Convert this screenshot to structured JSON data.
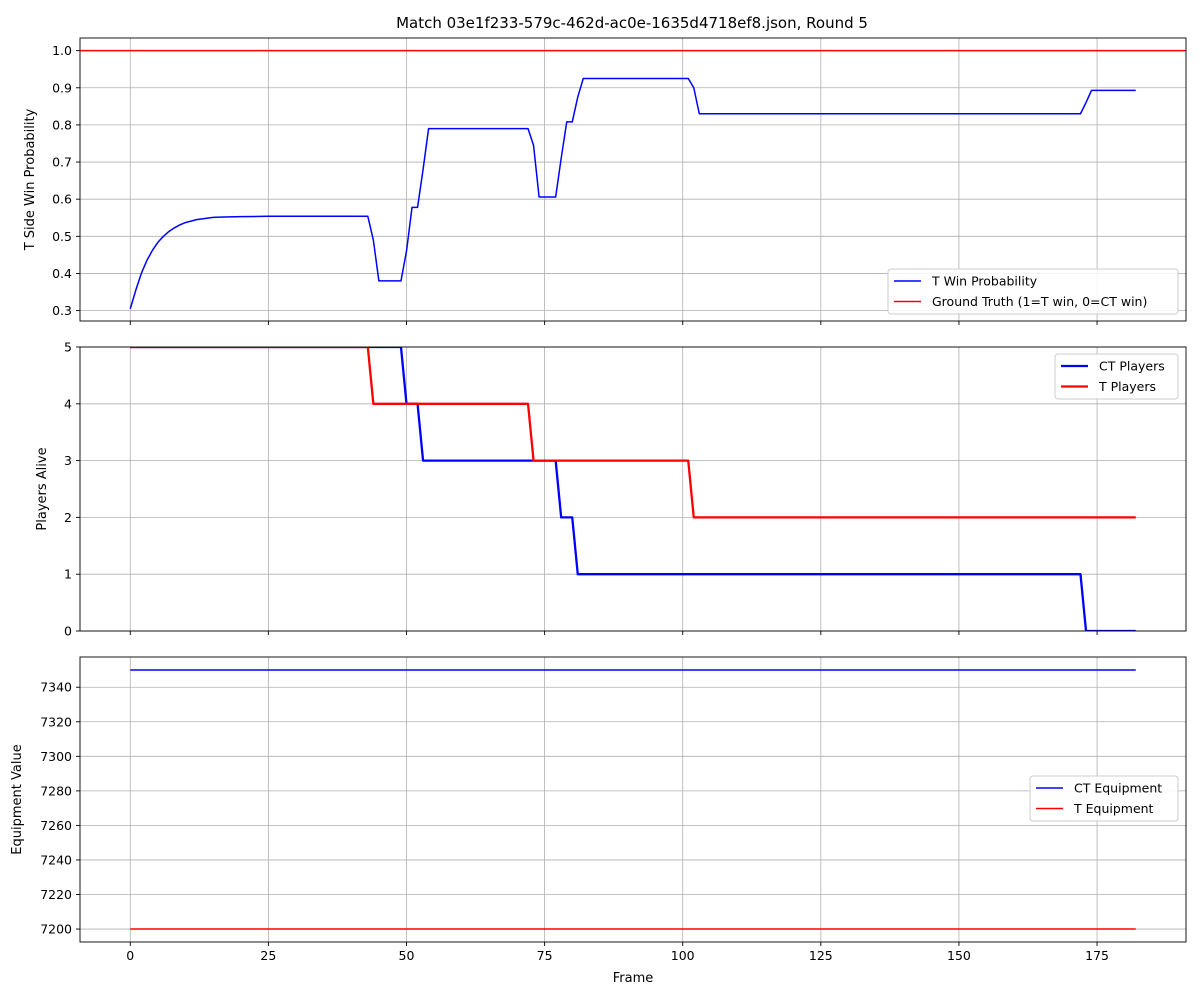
{
  "figure": {
    "title": "Match 03e1f233-579c-462d-ac0e-1635d4718ef8.json, Round 5"
  },
  "chart_data": [
    {
      "type": "line",
      "ylabel": "T Side Win Probability",
      "xlabel": "",
      "xlim": [
        -9.1,
        191.1
      ],
      "ylim": [
        0.272,
        1.034
      ],
      "xticks": [
        0,
        25,
        50,
        75,
        100,
        125,
        150,
        175
      ],
      "yticks": [
        0.3,
        0.4,
        0.5,
        0.6,
        0.7,
        0.8,
        0.9,
        1.0
      ],
      "ytick_labels": [
        "0.3",
        "0.4",
        "0.5",
        "0.6",
        "0.7",
        "0.8",
        "0.9",
        "1.0"
      ],
      "show_xtick_labels": false,
      "grid": true,
      "legend_loc": "lower right",
      "series": [
        {
          "name": "T Win Probability",
          "color": "#0000ff",
          "width": 1.5,
          "points": [
            [
              0,
              0.305
            ],
            [
              1,
              0.355
            ],
            [
              2,
              0.4
            ],
            [
              3,
              0.435
            ],
            [
              4,
              0.462
            ],
            [
              5,
              0.484
            ],
            [
              6,
              0.5
            ],
            [
              7,
              0.513
            ],
            [
              8,
              0.523
            ],
            [
              9,
              0.531
            ],
            [
              10,
              0.537
            ],
            [
              11,
              0.541
            ],
            [
              12,
              0.545
            ],
            [
              13,
              0.547
            ],
            [
              14,
              0.549
            ],
            [
              15,
              0.551
            ],
            [
              17,
              0.552
            ],
            [
              20,
              0.553
            ],
            [
              25,
              0.554
            ],
            [
              43,
              0.554
            ],
            [
              44,
              0.49
            ],
            [
              45,
              0.38
            ],
            [
              49,
              0.38
            ],
            [
              50,
              0.46
            ],
            [
              51,
              0.578
            ],
            [
              52,
              0.578
            ],
            [
              53,
              0.68
            ],
            [
              54,
              0.79
            ],
            [
              72,
              0.79
            ],
            [
              73,
              0.745
            ],
            [
              74,
              0.606
            ],
            [
              77,
              0.606
            ],
            [
              78,
              0.71
            ],
            [
              79,
              0.808
            ],
            [
              80,
              0.808
            ],
            [
              81,
              0.875
            ],
            [
              82,
              0.925
            ],
            [
              101,
              0.925
            ],
            [
              102,
              0.9
            ],
            [
              103,
              0.83
            ],
            [
              172,
              0.83
            ],
            [
              173,
              0.86
            ],
            [
              174,
              0.893
            ],
            [
              182,
              0.893
            ]
          ]
        },
        {
          "name": "Ground Truth (1=T win, 0=CT win)",
          "color": "#ff0000",
          "width": 1.5,
          "hline": 1.0
        }
      ]
    },
    {
      "type": "line",
      "ylabel": "Players Alive",
      "xlabel": "",
      "xlim": [
        -9.1,
        191.1
      ],
      "ylim": [
        0,
        5
      ],
      "xticks": [
        0,
        25,
        50,
        75,
        100,
        125,
        150,
        175
      ],
      "yticks": [
        0,
        1,
        2,
        3,
        4,
        5
      ],
      "ytick_labels": [
        "0",
        "1",
        "2",
        "3",
        "4",
        "5"
      ],
      "show_xtick_labels": false,
      "grid": true,
      "legend_loc": "upper right",
      "series": [
        {
          "name": "CT Players",
          "color": "#0000ff",
          "width": 2.3,
          "points": [
            [
              0,
              5
            ],
            [
              49,
              5
            ],
            [
              50,
              4
            ],
            [
              51,
              4
            ],
            [
              52,
              4
            ],
            [
              53,
              3
            ],
            [
              77,
              3
            ],
            [
              78,
              2
            ],
            [
              80,
              2
            ],
            [
              81,
              1
            ],
            [
              172,
              1
            ],
            [
              173,
              0
            ],
            [
              182,
              0
            ]
          ]
        },
        {
          "name": "T Players",
          "color": "#ff0000",
          "width": 2.3,
          "points": [
            [
              0,
              5
            ],
            [
              43,
              5
            ],
            [
              44,
              4
            ],
            [
              72,
              4
            ],
            [
              73,
              3
            ],
            [
              101,
              3
            ],
            [
              102,
              2
            ],
            [
              182,
              2
            ]
          ]
        }
      ]
    },
    {
      "type": "line",
      "ylabel": "Equipment Value",
      "xlabel": "Frame",
      "xlim": [
        -9.1,
        191.1
      ],
      "ylim": [
        7192.5,
        7357.5
      ],
      "xticks": [
        0,
        25,
        50,
        75,
        100,
        125,
        150,
        175
      ],
      "xtick_labels": [
        "0",
        "25",
        "50",
        "75",
        "100",
        "125",
        "150",
        "175"
      ],
      "yticks": [
        7200,
        7220,
        7240,
        7260,
        7280,
        7300,
        7320,
        7340
      ],
      "ytick_labels": [
        "7200",
        "7220",
        "7240",
        "7260",
        "7280",
        "7300",
        "7320",
        "7340"
      ],
      "show_xtick_labels": true,
      "grid": true,
      "legend_loc": "center right",
      "series": [
        {
          "name": "CT Equipment",
          "color": "#0000ff",
          "width": 1.5,
          "points": [
            [
              0,
              7350
            ],
            [
              182,
              7350
            ]
          ]
        },
        {
          "name": "T Equipment",
          "color": "#ff0000",
          "width": 1.5,
          "points": [
            [
              0,
              7200
            ],
            [
              182,
              7200
            ]
          ]
        }
      ]
    }
  ]
}
